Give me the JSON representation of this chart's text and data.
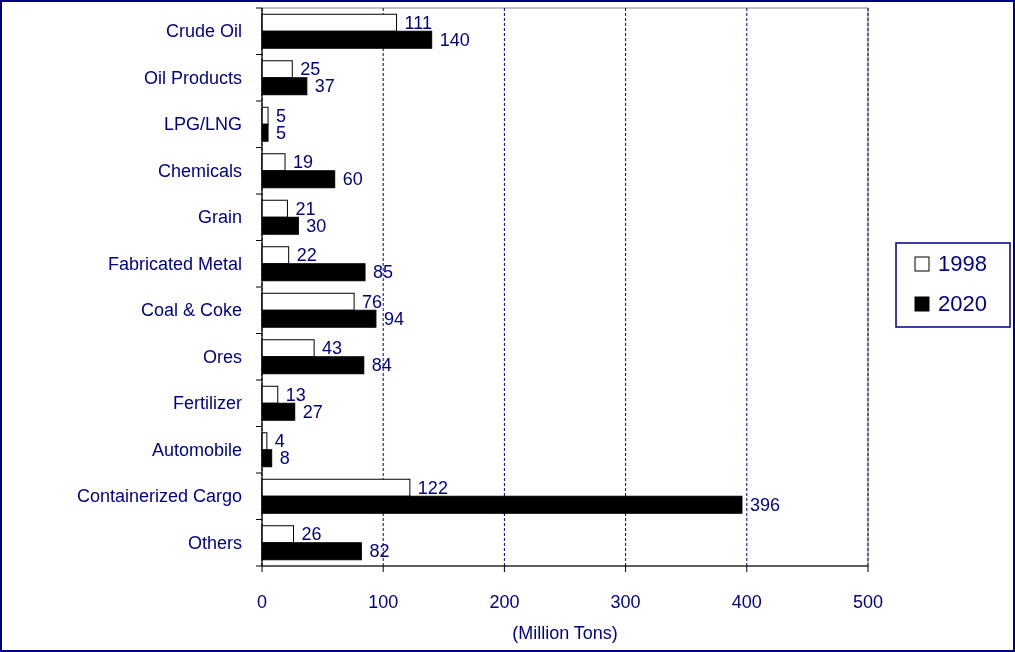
{
  "chart_data": {
    "type": "bar",
    "orientation": "horizontal",
    "xlabel": "(Million Tons)",
    "categories": [
      "Crude Oil",
      "Oil Products",
      "LPG/LNG",
      "Chemicals",
      "Grain",
      "Fabricated Metal",
      "Coal & Coke",
      "Ores",
      "Fertilizer",
      "Automobile",
      "Containerized Cargo",
      "Others"
    ],
    "series": [
      {
        "name": "1998",
        "color": "#ffffff",
        "values": [
          111,
          25,
          5,
          19,
          21,
          22,
          76,
          43,
          13,
          4,
          122,
          26
        ]
      },
      {
        "name": "2020",
        "color": "#000000",
        "values": [
          140,
          37,
          5,
          60,
          30,
          85,
          94,
          84,
          27,
          8,
          396,
          82
        ]
      }
    ],
    "xlim": [
      0,
      500
    ],
    "xticks": [
      0,
      100,
      200,
      300,
      400,
      500
    ],
    "grid": "x",
    "legend": "right",
    "data_labels": true
  }
}
